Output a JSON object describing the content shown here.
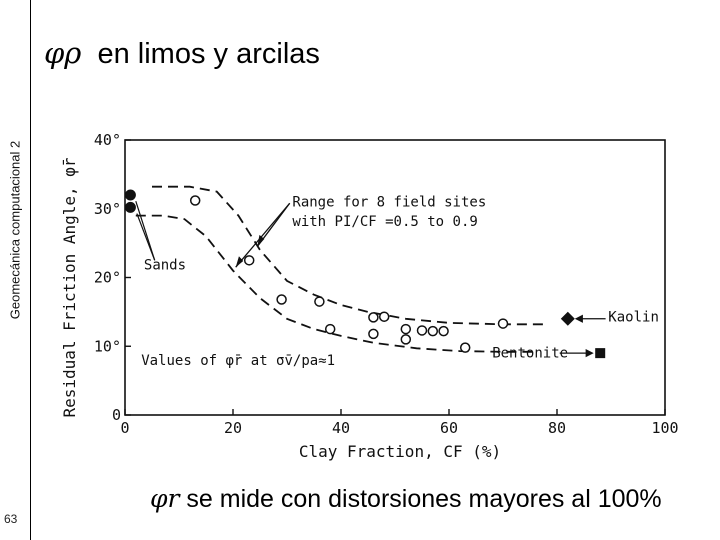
{
  "slide": {
    "sidebar_text": "Geomecánica computacional 2",
    "page_number": "63",
    "title_symbol": "φρ",
    "title_text": "en limos y arcilas",
    "caption_symbol": "φr",
    "caption_text": "se mide con distorsiones mayores al 100%"
  },
  "chart_data": {
    "type": "scatter",
    "xlabel": "Clay Fraction, CF (%)",
    "ylabel": "Residual Friction Angle, φ̄r",
    "xlim": [
      0,
      100
    ],
    "ylim": [
      0,
      40
    ],
    "xticks": [
      "0",
      "20",
      "40",
      "60",
      "80",
      "100"
    ],
    "yticks": [
      "0",
      "10°",
      "20°",
      "30°",
      "40°"
    ],
    "annotations": {
      "range_line1": "Range for 8 field sites",
      "range_line2": "with PI/CF =0.5 to 0.9",
      "sands": "Sands",
      "kaolin": "Kaolin",
      "bentonite": "Bentonite",
      "values_note": "Values of φ̄r at σ̄v/pa≈1"
    },
    "series": [
      {
        "name": "Sands",
        "marker": "filled-circle",
        "points": [
          [
            1,
            32
          ],
          [
            1,
            30.2
          ]
        ]
      },
      {
        "name": "Field sites",
        "marker": "open-circle",
        "points": [
          [
            13,
            31.2
          ],
          [
            23,
            22.5
          ],
          [
            29,
            16.8
          ],
          [
            36,
            16.5
          ],
          [
            38,
            12.5
          ],
          [
            46,
            14.2
          ],
          [
            48,
            14.3
          ],
          [
            46,
            11.8
          ],
          [
            52,
            12.5
          ],
          [
            52,
            11
          ],
          [
            55,
            12.3
          ],
          [
            57,
            12.2
          ],
          [
            59,
            12.2
          ],
          [
            63,
            9.8
          ],
          [
            70,
            13.3
          ]
        ]
      },
      {
        "name": "Kaolin",
        "marker": "filled-diamond",
        "points": [
          [
            82,
            14
          ]
        ]
      },
      {
        "name": "Bentonite",
        "marker": "filled-square",
        "points": [
          [
            88,
            9
          ]
        ]
      }
    ],
    "bounds": {
      "upper": [
        [
          5,
          33.2
        ],
        [
          12,
          33.2
        ],
        [
          17,
          32.5
        ],
        [
          21,
          29
        ],
        [
          25,
          24
        ],
        [
          30,
          19.5
        ],
        [
          35,
          17.5
        ],
        [
          40,
          16
        ],
        [
          45,
          15
        ],
        [
          52,
          14
        ],
        [
          60,
          13.4
        ],
        [
          70,
          13.2
        ],
        [
          78,
          13.2
        ]
      ],
      "lower": [
        [
          2,
          29
        ],
        [
          7,
          29
        ],
        [
          11,
          28.5
        ],
        [
          15,
          26
        ],
        [
          20,
          21
        ],
        [
          25,
          17
        ],
        [
          30,
          14
        ],
        [
          35,
          12.5
        ],
        [
          40,
          11.5
        ],
        [
          46,
          10.5
        ],
        [
          54,
          9.7
        ],
        [
          62,
          9.3
        ],
        [
          70,
          9.2
        ],
        [
          76,
          9.2
        ]
      ]
    }
  }
}
